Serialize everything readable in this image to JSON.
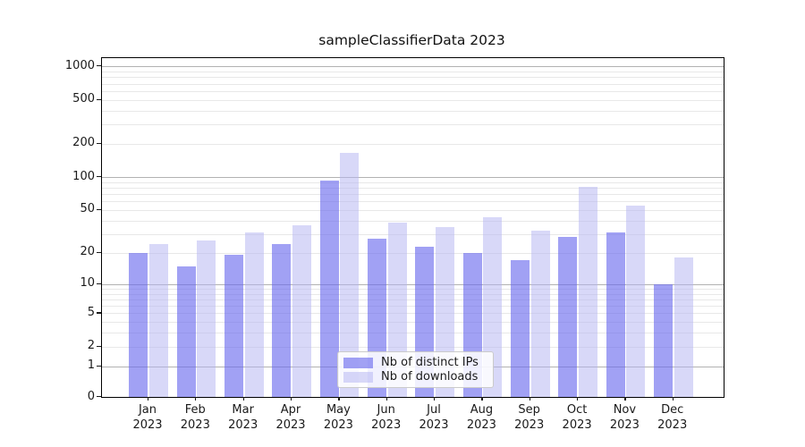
{
  "title": "sampleClassifierData 2023",
  "chart_data": {
    "type": "bar",
    "title": "sampleClassifierData 2023",
    "categories": [
      "Jan 2023",
      "Feb 2023",
      "Mar 2023",
      "Apr 2023",
      "May 2023",
      "Jun 2023",
      "Jul 2023",
      "Aug 2023",
      "Sep 2023",
      "Oct 2023",
      "Nov 2023",
      "Dec 2023"
    ],
    "months": [
      "Jan",
      "Feb",
      "Mar",
      "Apr",
      "May",
      "Jun",
      "Jul",
      "Aug",
      "Sep",
      "Oct",
      "Nov",
      "Dec"
    ],
    "year": "2023",
    "series": [
      {
        "name": "Nb of distinct IPs",
        "color": "#6868ee",
        "opacity": 0.62,
        "values": [
          20,
          15,
          19,
          24,
          93,
          27,
          23,
          20,
          17,
          28,
          31,
          10
        ]
      },
      {
        "name": "Nb of downloads",
        "color": "#b4b4f2",
        "opacity": 0.52,
        "values": [
          24,
          26,
          31,
          36,
          166,
          38,
          35,
          43,
          32,
          81,
          55,
          18
        ]
      }
    ],
    "yscale": "log10(1+x)",
    "yticks": [
      0,
      1,
      2,
      5,
      10,
      20,
      50,
      100,
      200,
      500,
      1000
    ],
    "minor_gridlines": [
      2,
      3,
      4,
      5,
      6,
      7,
      8,
      9,
      20,
      30,
      40,
      50,
      60,
      70,
      80,
      90,
      200,
      300,
      400,
      500,
      600,
      700,
      800,
      900
    ],
    "major_gridlines": [
      1,
      10,
      100,
      1000
    ],
    "ylim": [
      0,
      1190
    ],
    "grid": "on",
    "legend_position": "lower center",
    "colors": {
      "major_grid": "#b2b2b2",
      "minor_grid": "#e8e8e8",
      "axis": "#000000"
    }
  },
  "legend": {
    "items": [
      {
        "label": "Nb of distinct IPs"
      },
      {
        "label": "Nb of downloads"
      }
    ]
  }
}
